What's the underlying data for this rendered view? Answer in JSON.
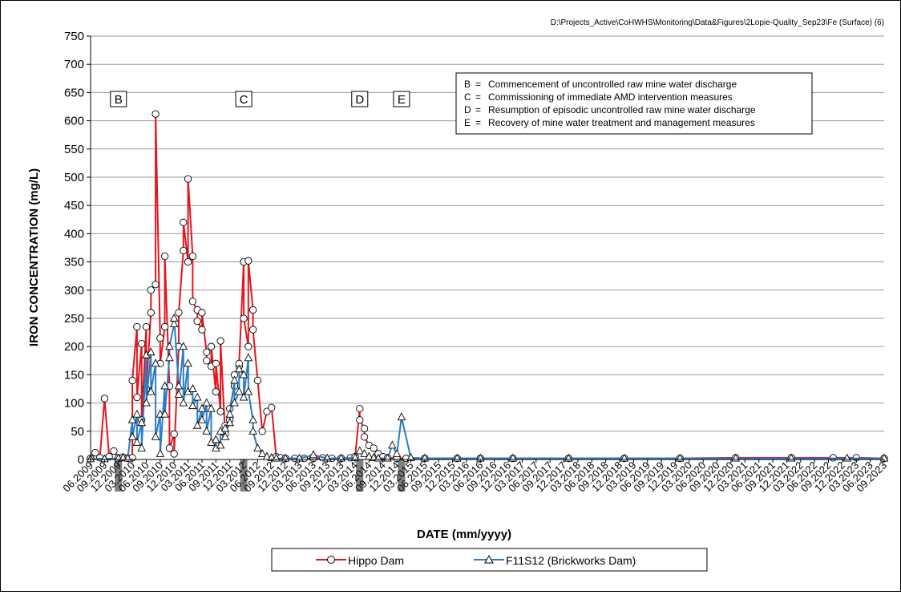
{
  "chart_data": {
    "type": "line",
    "file_path": "D:\\Projects_Active\\CoHWHS\\Monitoring\\Data&Figures\\2Lopie-Quality_Sep23\\Fe (Surface) (6)",
    "xlabel": "DATE  (mm/yyyy)",
    "ylabel": "IRON  CONCENTRATION  (mg/L)",
    "ylim": [
      0,
      750
    ],
    "y_ticks": [
      0,
      50,
      100,
      150,
      200,
      250,
      300,
      350,
      400,
      450,
      500,
      550,
      600,
      650,
      700,
      750
    ],
    "xlim": [
      "2009-06",
      "2023-09"
    ],
    "x_tick_labels": [
      "06.2009",
      "09.2009",
      "12.2009",
      "03.2010",
      "06.2010",
      "09.2010",
      "12.2010",
      "03.2011",
      "06.2011",
      "09.2011",
      "12.2011",
      "03.2012",
      "06.2012",
      "09.2012",
      "12.2012",
      "03.2013",
      "06.2013",
      "09.2013",
      "12.2013",
      "03.2014",
      "06.2014",
      "09.2014",
      "12.2014",
      "03.2015",
      "06.2015",
      "09.2015",
      "12.2015",
      "03.2016",
      "06.2016",
      "09.2016",
      "12.2016",
      "03.2017",
      "06.2017",
      "09.2017",
      "12.2017",
      "03.2018",
      "06.2018",
      "09.2018",
      "12.2018",
      "03.2019",
      "06.2019",
      "09.2019",
      "12.2019",
      "03.2020",
      "06.2020",
      "09.2020",
      "12.2020",
      "03.2021",
      "06.2021",
      "09.2021",
      "12.2021",
      "03.2022",
      "06.2022",
      "09.2022",
      "12.2022",
      "03.2023",
      "06.2023",
      "09.2023"
    ],
    "grid": true,
    "events": [
      {
        "label": "B",
        "date": "2009-12",
        "description": "Commencement of uncontrolled raw mine water discharge"
      },
      {
        "label": "C",
        "date": "2012-03",
        "description": "Commissioning of immediate AMD intervention measures"
      },
      {
        "label": "D",
        "date": "2014-04",
        "description": "Resumption of episodic uncontrolled raw mine water discharge"
      },
      {
        "label": "E",
        "date": "2015-01",
        "description": "Recovery of mine water treatment and management measures"
      }
    ],
    "series": [
      {
        "name": "Hippo Dam",
        "color": "#e8141c",
        "marker": "circle",
        "x": [
          "2009-06",
          "2009-07",
          "2009-08",
          "2009-09",
          "2009-10",
          "2009-11",
          "2009-12",
          "2010-01",
          "2010-02",
          "2010-03",
          "2010-03",
          "2010-04",
          "2010-04",
          "2010-05",
          "2010-05",
          "2010-06",
          "2010-06",
          "2010-07",
          "2010-07",
          "2010-08",
          "2010-08",
          "2010-09",
          "2010-09",
          "2010-10",
          "2010-10",
          "2010-11",
          "2010-11",
          "2010-12",
          "2010-12",
          "2011-01",
          "2011-01",
          "2011-02",
          "2011-02",
          "2011-03",
          "2011-03",
          "2011-04",
          "2011-04",
          "2011-05",
          "2011-05",
          "2011-06",
          "2011-06",
          "2011-07",
          "2011-07",
          "2011-08",
          "2011-08",
          "2011-09",
          "2011-09",
          "2011-10",
          "2011-10",
          "2011-11",
          "2011-11",
          "2011-12",
          "2011-12",
          "2012-01",
          "2012-01",
          "2012-02",
          "2012-02",
          "2012-03",
          "2012-03",
          "2012-04",
          "2012-04",
          "2012-05",
          "2012-05",
          "2012-06",
          "2012-07",
          "2012-08",
          "2012-09",
          "2012-10",
          "2012-11",
          "2012-12",
          "2013-02",
          "2013-04",
          "2013-06",
          "2013-08",
          "2013-10",
          "2013-12",
          "2014-02",
          "2014-03",
          "2014-04",
          "2014-04",
          "2014-05",
          "2014-05",
          "2014-06",
          "2014-07",
          "2014-08",
          "2014-09",
          "2014-10",
          "2014-12",
          "2015-02",
          "2015-06",
          "2016-01",
          "2016-06",
          "2017-01",
          "2018-01",
          "2019-01",
          "2020-01",
          "2021-01",
          "2022-01",
          "2022-10",
          "2023-03",
          "2023-09"
        ],
        "y": [
          2,
          12,
          3,
          108,
          5,
          15,
          3,
          4,
          2,
          3,
          140,
          235,
          110,
          205,
          70,
          235,
          125,
          260,
          300,
          310,
          612,
          215,
          170,
          235,
          360,
          130,
          20,
          45,
          10,
          200,
          260,
          370,
          420,
          350,
          497,
          360,
          280,
          265,
          245,
          230,
          260,
          190,
          175,
          165,
          200,
          120,
          170,
          85,
          210,
          45,
          60,
          70,
          90,
          130,
          150,
          165,
          170,
          350,
          250,
          200,
          352,
          265,
          230,
          140,
          50,
          85,
          92,
          5,
          3,
          2,
          2,
          2,
          2,
          3,
          2,
          2,
          3,
          5,
          90,
          70,
          55,
          40,
          25,
          20,
          10,
          5,
          3,
          2,
          2,
          2,
          2,
          2,
          2,
          2,
          2,
          2,
          3,
          3,
          3,
          3,
          2
        ]
      },
      {
        "name": "F11S12 (Brickworks Dam)",
        "color": "#2a7dc4",
        "marker": "triangle",
        "x": [
          "2009-06",
          "2009-09",
          "2009-12",
          "2010-01",
          "2010-02",
          "2010-03",
          "2010-03",
          "2010-04",
          "2010-04",
          "2010-05",
          "2010-05",
          "2010-06",
          "2010-06",
          "2010-07",
          "2010-07",
          "2010-08",
          "2010-08",
          "2010-09",
          "2010-09",
          "2010-10",
          "2010-10",
          "2010-11",
          "2010-11",
          "2010-12",
          "2010-12",
          "2011-01",
          "2011-01",
          "2011-02",
          "2011-02",
          "2011-03",
          "2011-03",
          "2011-04",
          "2011-04",
          "2011-05",
          "2011-05",
          "2011-06",
          "2011-06",
          "2011-07",
          "2011-07",
          "2011-08",
          "2011-08",
          "2011-09",
          "2011-09",
          "2011-10",
          "2011-10",
          "2011-11",
          "2011-11",
          "2011-12",
          "2011-12",
          "2012-01",
          "2012-01",
          "2012-02",
          "2012-02",
          "2012-03",
          "2012-03",
          "2012-04",
          "2012-04",
          "2012-05",
          "2012-05",
          "2012-06",
          "2012-07",
          "2012-08",
          "2012-09",
          "2012-10",
          "2012-12",
          "2013-03",
          "2013-06",
          "2013-09",
          "2013-12",
          "2014-03",
          "2014-04",
          "2014-05",
          "2014-06",
          "2014-07",
          "2014-08",
          "2014-10",
          "2014-11",
          "2014-12",
          "2015-01",
          "2015-03",
          "2015-06",
          "2016-01",
          "2016-06",
          "2017-01",
          "2018-01",
          "2019-01",
          "2020-01",
          "2021-01",
          "2022-01",
          "2023-01",
          "2023-09"
        ],
        "y": [
          1,
          1,
          2,
          3,
          2,
          70,
          40,
          80,
          30,
          65,
          20,
          185,
          100,
          190,
          120,
          170,
          40,
          80,
          10,
          130,
          80,
          180,
          200,
          240,
          250,
          130,
          115,
          200,
          100,
          170,
          120,
          125,
          95,
          110,
          60,
          90,
          70,
          100,
          50,
          90,
          30,
          20,
          35,
          25,
          50,
          40,
          55,
          65,
          80,
          140,
          100,
          120,
          160,
          150,
          110,
          180,
          120,
          70,
          50,
          20,
          10,
          5,
          3,
          2,
          2,
          2,
          8,
          2,
          2,
          3,
          15,
          10,
          5,
          3,
          2,
          2,
          25,
          10,
          75,
          3,
          2,
          2,
          2,
          2,
          2,
          2,
          2,
          2,
          2,
          2,
          2
        ]
      }
    ]
  },
  "legend": {
    "items": [
      {
        "label": "Hippo Dam"
      },
      {
        "label": "F11S12 (Brickworks Dam)"
      }
    ]
  }
}
